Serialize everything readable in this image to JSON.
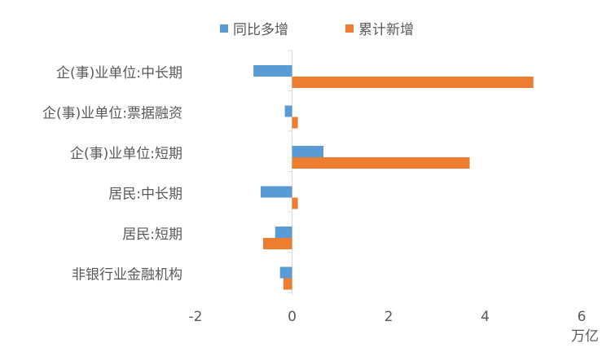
{
  "chart_data": {
    "type": "bar",
    "orientation": "horizontal",
    "categories": [
      "企(事)业单位:中长期",
      "企(事)业单位:票据融资",
      "企(事)业单位:短期",
      "居民:中长期",
      "居民:短期",
      "非银行业金融机构"
    ],
    "series": [
      {
        "name": "同比多增",
        "color": "#5B9BD5",
        "values": [
          -0.8,
          -0.15,
          0.65,
          -0.65,
          -0.35,
          -0.25
        ]
      },
      {
        "name": "累计新增",
        "color": "#ED7D31",
        "values": [
          5.0,
          0.12,
          3.68,
          0.12,
          -0.6,
          -0.18
        ]
      }
    ],
    "xlim": [
      -2,
      6
    ],
    "xticks": [
      -2,
      0,
      2,
      4,
      6
    ],
    "xunit": "万亿",
    "legend_position": "top"
  }
}
